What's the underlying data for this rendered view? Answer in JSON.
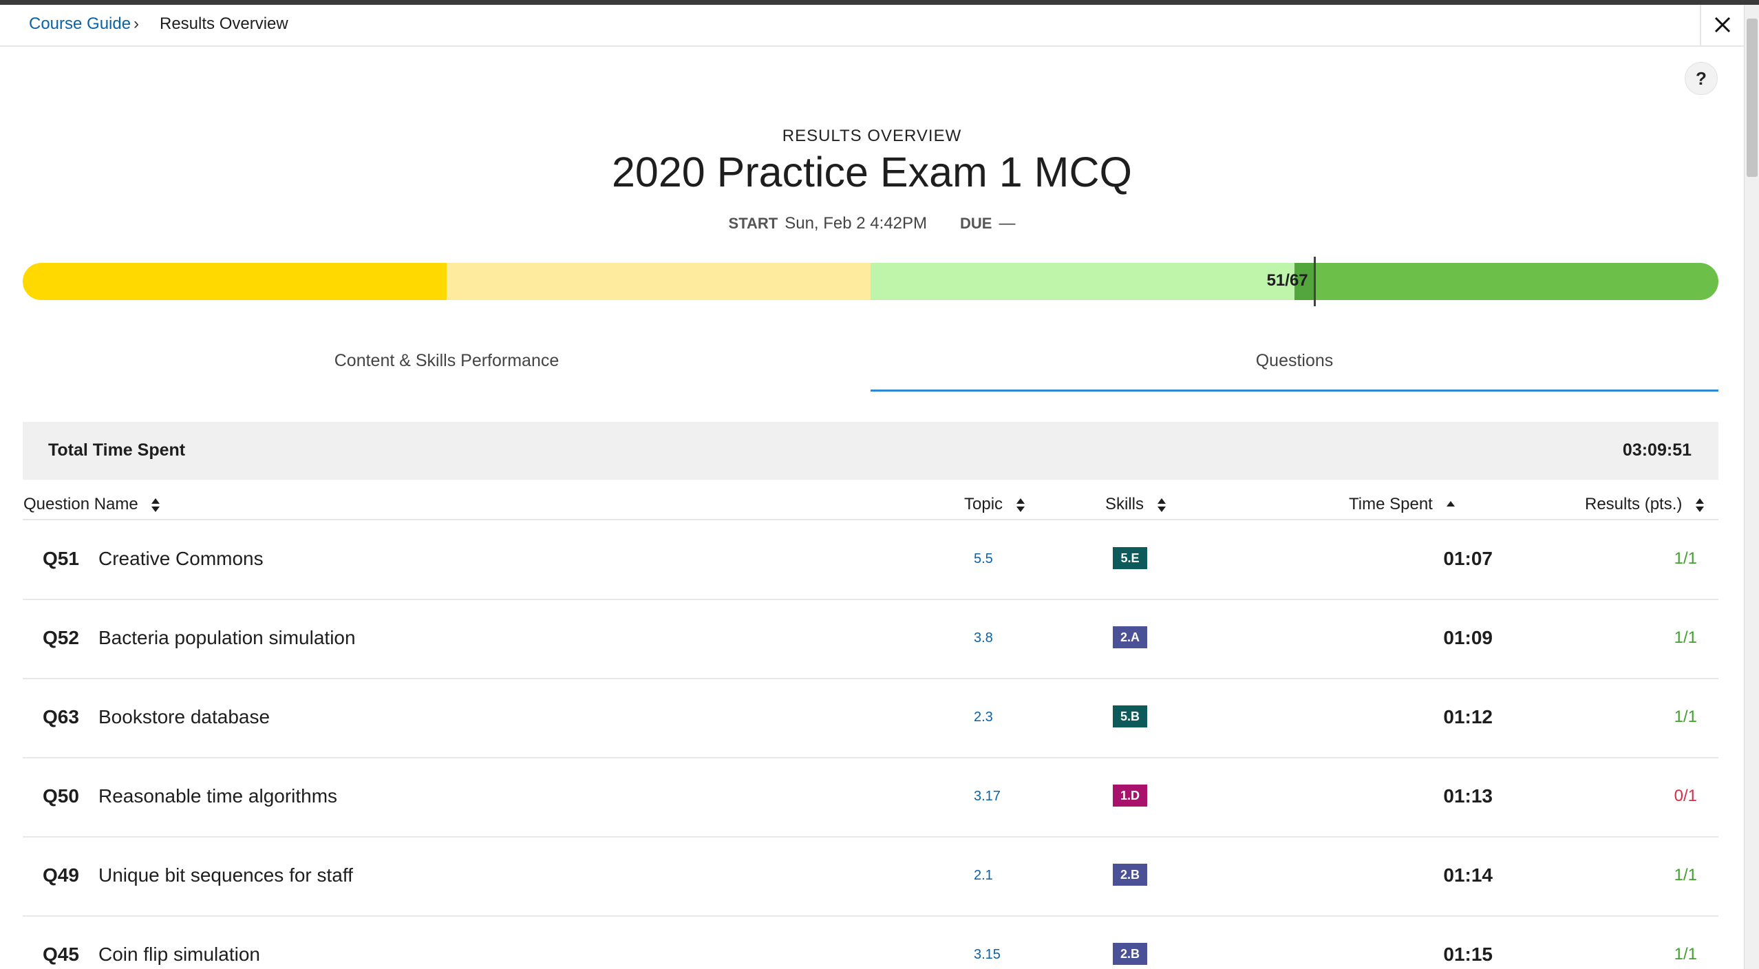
{
  "breadcrumb": {
    "parent": "Course Guide",
    "separator": "›",
    "current": "Results Overview"
  },
  "icons": {
    "close": "close-icon",
    "help": "help-icon",
    "sort": "sort-icon",
    "sort_asc": "sort-ascending-icon"
  },
  "help_label": "?",
  "header": {
    "eyebrow": "RESULTS OVERVIEW",
    "title": "2020 Practice Exam 1 MCQ",
    "start_label": "START",
    "start_value": "Sun, Feb 2 4:42PM",
    "due_label": "DUE",
    "due_value": "—"
  },
  "score": {
    "label": "51/67",
    "earned": 51,
    "total": 67
  },
  "colors": {
    "bar_seg1": "#ffd900",
    "bar_seg2": "#ffeb9e",
    "bar_seg3": "#bef5ab",
    "bar_seg4": "#6cc04a",
    "correct": "#43a02f",
    "incorrect": "#d3304a",
    "topic_link": "#0b62a8"
  },
  "tabs": [
    {
      "label": "Content & Skills Performance",
      "active": false
    },
    {
      "label": "Questions",
      "active": true
    }
  ],
  "summary": {
    "label": "Total Time Spent",
    "value": "03:09:51"
  },
  "table": {
    "columns": {
      "question": "Question Name",
      "topic": "Topic",
      "skills": "Skills",
      "time": "Time Spent",
      "results": "Results (pts.)"
    },
    "rows": [
      {
        "number": "Q51",
        "name": "Creative Commons",
        "topic": "5.5",
        "skill": "5.E",
        "skill_color": "#0d5a5a",
        "time": "01:07",
        "result": "1/1",
        "correct": true
      },
      {
        "number": "Q52",
        "name": "Bacteria population simulation",
        "topic": "3.8",
        "skill": "2.A",
        "skill_color": "#4a5196",
        "time": "01:09",
        "result": "1/1",
        "correct": true
      },
      {
        "number": "Q63",
        "name": "Bookstore database",
        "topic": "2.3",
        "skill": "5.B",
        "skill_color": "#0d5a5a",
        "time": "01:12",
        "result": "1/1",
        "correct": true
      },
      {
        "number": "Q50",
        "name": "Reasonable time algorithms",
        "topic": "3.17",
        "skill": "1.D",
        "skill_color": "#a8126b",
        "time": "01:13",
        "result": "0/1",
        "correct": false
      },
      {
        "number": "Q49",
        "name": "Unique bit sequences for staff",
        "topic": "2.1",
        "skill": "2.B",
        "skill_color": "#4a5196",
        "time": "01:14",
        "result": "1/1",
        "correct": true
      },
      {
        "number": "Q45",
        "name": "Coin flip simulation",
        "topic": "3.15",
        "skill": "2.B",
        "skill_color": "#4a5196",
        "time": "01:15",
        "result": "1/1",
        "correct": true
      }
    ]
  }
}
